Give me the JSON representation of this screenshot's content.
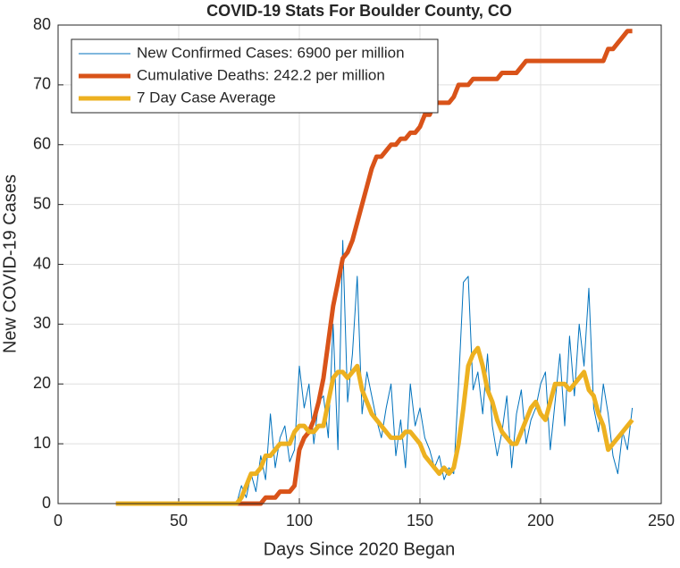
{
  "chart_data": {
    "type": "line",
    "title": "COVID-19 Stats For Boulder County, CO",
    "xlabel": "Days Since 2020 Began",
    "ylabel": "New COVID-19 Cases",
    "x": [
      24,
      26,
      28,
      30,
      32,
      34,
      36,
      38,
      40,
      42,
      44,
      46,
      48,
      50,
      52,
      54,
      56,
      58,
      60,
      62,
      64,
      66,
      68,
      70,
      72,
      74,
      76,
      78,
      80,
      82,
      84,
      86,
      88,
      90,
      92,
      94,
      96,
      98,
      100,
      102,
      104,
      106,
      108,
      110,
      112,
      114,
      116,
      118,
      120,
      122,
      124,
      126,
      128,
      130,
      132,
      134,
      136,
      138,
      140,
      142,
      144,
      146,
      148,
      150,
      152,
      154,
      156,
      158,
      160,
      162,
      164,
      166,
      168,
      170,
      172,
      174,
      176,
      178,
      180,
      182,
      184,
      186,
      188,
      190,
      192,
      194,
      196,
      198,
      200,
      202,
      204,
      206,
      208,
      210,
      212,
      214,
      216,
      218,
      220,
      222,
      224,
      226,
      228,
      230,
      232,
      234,
      236,
      238
    ],
    "series": [
      {
        "name": "New Confirmed Cases: 6900 per million",
        "color": "#0072BD",
        "width": 1,
        "values": [
          0,
          0,
          0,
          0,
          0,
          0,
          0,
          0,
          0,
          0,
          0,
          0,
          0,
          0,
          0,
          0,
          0,
          0,
          0,
          0,
          0,
          0,
          0,
          0,
          0,
          0,
          3,
          1,
          5,
          2,
          8,
          4,
          15,
          6,
          11,
          13,
          7,
          9,
          23,
          16,
          20,
          10,
          17,
          18,
          11,
          30,
          9,
          44,
          17,
          25,
          38,
          15,
          22,
          18,
          14,
          11,
          16,
          20,
          8,
          14,
          6,
          20,
          13,
          16,
          11,
          9,
          6,
          8,
          4,
          6,
          5,
          20,
          37,
          38,
          19,
          22,
          15,
          25,
          13,
          8,
          12,
          18,
          6,
          15,
          19,
          10,
          14,
          16,
          20,
          22,
          9,
          17,
          25,
          13,
          28,
          18,
          30,
          23,
          36,
          16,
          12,
          20,
          15,
          8,
          5,
          12,
          9,
          16
        ]
      },
      {
        "name": "Cumulative Deaths: 242.2 per million",
        "color": "#D95319",
        "width": 5,
        "values": [
          0,
          0,
          0,
          0,
          0,
          0,
          0,
          0,
          0,
          0,
          0,
          0,
          0,
          0,
          0,
          0,
          0,
          0,
          0,
          0,
          0,
          0,
          0,
          0,
          0,
          0,
          0,
          0,
          0,
          0,
          0,
          1,
          1,
          1,
          2,
          2,
          2,
          3,
          9,
          11,
          12,
          14,
          17,
          21,
          27,
          33,
          37,
          41,
          42,
          44,
          47,
          50,
          53,
          56,
          58,
          58,
          59,
          60,
          60,
          61,
          61,
          62,
          62,
          63,
          65,
          65,
          67,
          67,
          67,
          67,
          68,
          70,
          70,
          70,
          71,
          71,
          71,
          71,
          71,
          71,
          72,
          72,
          72,
          72,
          73,
          74,
          74,
          74,
          74,
          74,
          74,
          74,
          74,
          74,
          74,
          74,
          74,
          74,
          74,
          74,
          74,
          74,
          76,
          76,
          77,
          78,
          79,
          79
        ]
      },
      {
        "name": "7 Day Case Average",
        "color": "#EDB120",
        "width": 5,
        "values": [
          0,
          0,
          0,
          0,
          0,
          0,
          0,
          0,
          0,
          0,
          0,
          0,
          0,
          0,
          0,
          0,
          0,
          0,
          0,
          0,
          0,
          0,
          0,
          0,
          0,
          0,
          1,
          3,
          5,
          5,
          6,
          8,
          8,
          9,
          10,
          10,
          10,
          12,
          13,
          13,
          12,
          12,
          13,
          13,
          17,
          21,
          22,
          22,
          21,
          22,
          23,
          19,
          17,
          15,
          14,
          13,
          12,
          11,
          11,
          11,
          12,
          12,
          11,
          10,
          8,
          7,
          6,
          5,
          6,
          5,
          6,
          10,
          16,
          23,
          25,
          26,
          23,
          19,
          17,
          14,
          12,
          11,
          10,
          10,
          12,
          14,
          16,
          17,
          15,
          14,
          17,
          20,
          20,
          20,
          19,
          20,
          21,
          22,
          19,
          18,
          15,
          13,
          9,
          10,
          11,
          12,
          13,
          14
        ]
      }
    ],
    "xlim": [
      0,
      250
    ],
    "xticks": [
      0,
      50,
      100,
      150,
      200,
      250
    ],
    "ylim": [
      0,
      80
    ],
    "yticks": [
      0,
      10,
      20,
      30,
      40,
      50,
      60,
      70,
      80
    ],
    "grid": true,
    "legend": "top-left"
  }
}
